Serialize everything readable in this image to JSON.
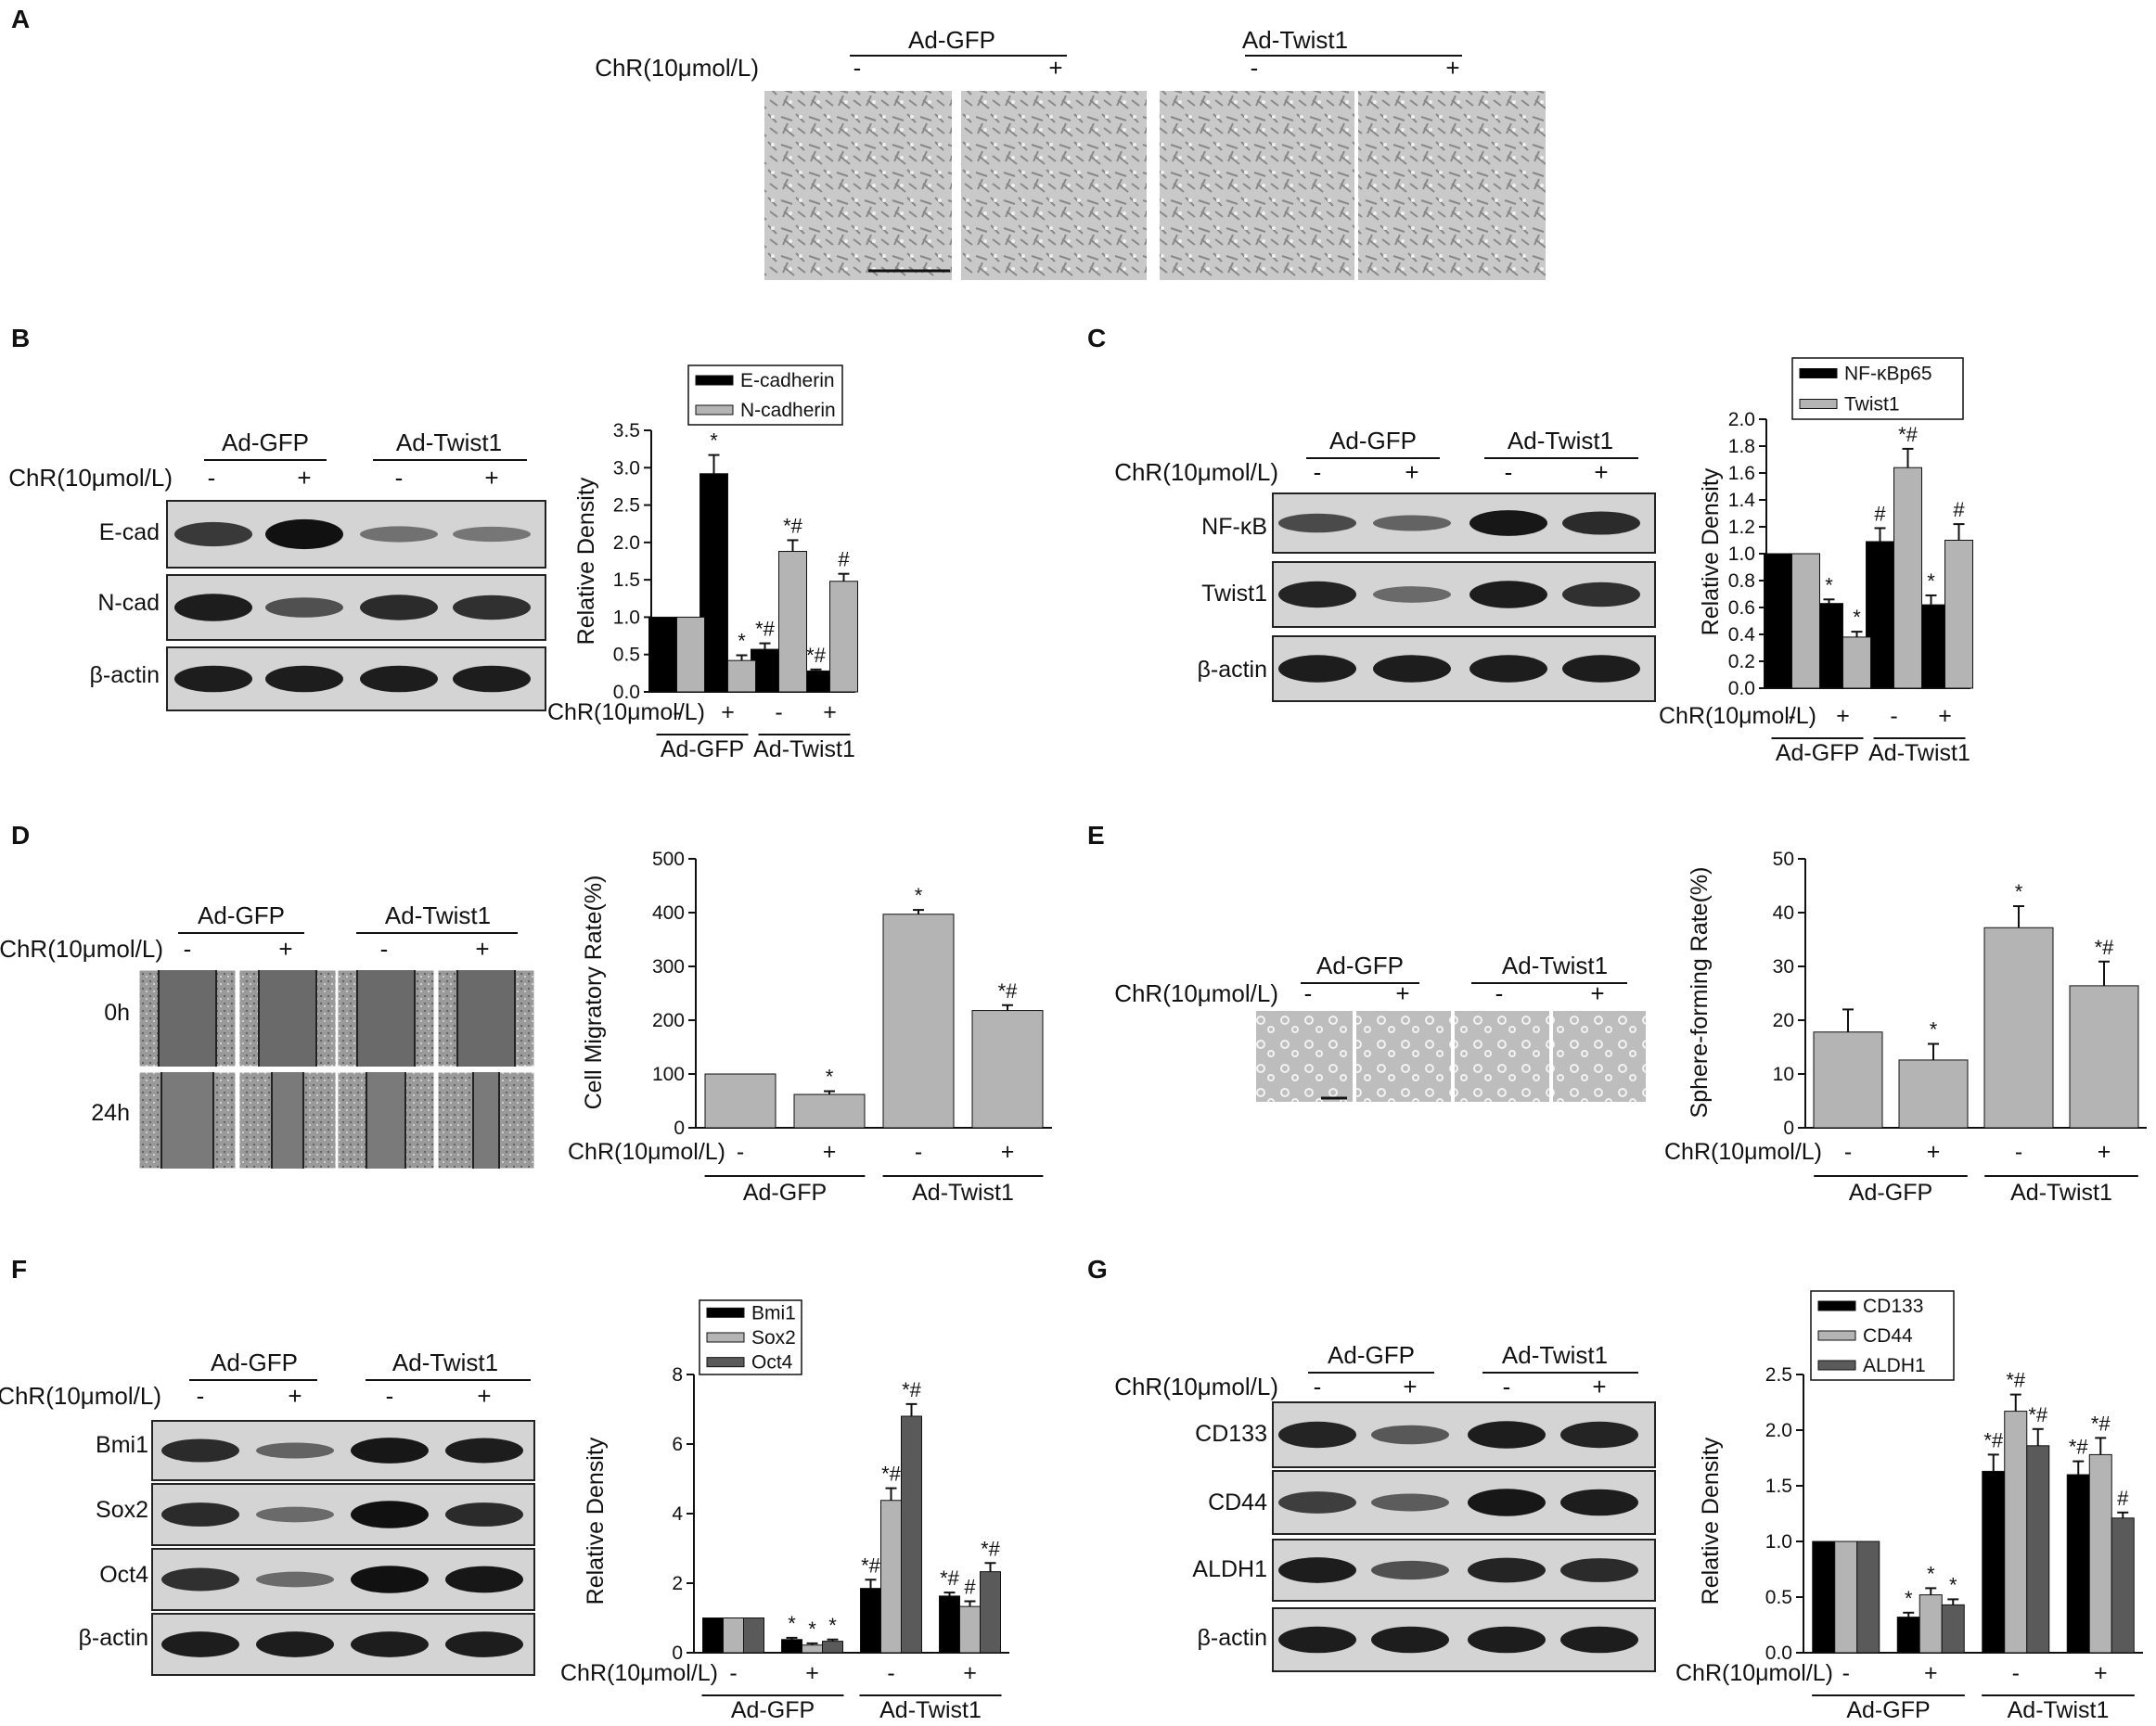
{
  "panels": {
    "A": {
      "label": "A",
      "groups": [
        "Ad-GFP",
        "Ad-Twist1"
      ],
      "treatment_label": "ChR(10μmol/L)",
      "signs": [
        "-",
        "+",
        "-",
        "+"
      ]
    },
    "B": {
      "label": "B",
      "groups": [
        "Ad-GFP",
        "Ad-Twist1"
      ],
      "treatment_label": "ChR(10μmol/L)",
      "signs": [
        "-",
        "+",
        "-",
        "+"
      ],
      "blot_rows": [
        "E-cad",
        "N-cad",
        "β-actin"
      ]
    },
    "C": {
      "label": "C",
      "groups": [
        "Ad-GFP",
        "Ad-Twist1"
      ],
      "treatment_label": "ChR(10μmol/L)",
      "signs": [
        "-",
        "+",
        "-",
        "+"
      ],
      "blot_rows": [
        "NF-κB",
        "Twist1",
        "β-actin"
      ]
    },
    "D": {
      "label": "D",
      "groups": [
        "Ad-GFP",
        "Ad-Twist1"
      ],
      "treatment_label": "ChR(10μmol/L)",
      "signs": [
        "-",
        "+",
        "-",
        "+"
      ],
      "time_rows": [
        "0h",
        "24h"
      ]
    },
    "E": {
      "label": "E",
      "groups": [
        "Ad-GFP",
        "Ad-Twist1"
      ],
      "treatment_label": "ChR(10μmol/L)",
      "signs": [
        "-",
        "+",
        "-",
        "+"
      ]
    },
    "F": {
      "label": "F",
      "groups": [
        "Ad-GFP",
        "Ad-Twist1"
      ],
      "treatment_label": "ChR(10μmol/L)",
      "signs": [
        "-",
        "+",
        "-",
        "+"
      ],
      "blot_rows": [
        "Bmi1",
        "Sox2",
        "Oct4",
        "β-actin"
      ]
    },
    "G": {
      "label": "G",
      "groups": [
        "Ad-GFP",
        "Ad-Twist1"
      ],
      "treatment_label": "ChR(10μmol/L)",
      "signs": [
        "-",
        "+",
        "-",
        "+"
      ],
      "blot_rows": [
        "CD133",
        "CD44",
        "ALDH1",
        "β-actin"
      ]
    }
  },
  "colors": {
    "black": "#000000",
    "light_gray": "#b4b4b4",
    "dark_gray": "#5a5a5a"
  },
  "chart_data": [
    {
      "id": "B",
      "type": "bar",
      "ylabel": "Relative Density",
      "ylim": [
        0,
        3.5
      ],
      "yticks": [
        "0.0",
        "0.5",
        "1.0",
        "1.5",
        "2.0",
        "2.5",
        "3.0",
        "3.5"
      ],
      "legend_position": "top",
      "categories": [
        "-",
        "+",
        "-",
        "+"
      ],
      "group_labels": [
        "Ad-GFP",
        "Ad-Twist1"
      ],
      "treatment_label": "ChR(10μmol/L)",
      "series": [
        {
          "name": "E-cadherin",
          "color": "#000000",
          "values": [
            1.0,
            2.92,
            0.57,
            0.28
          ],
          "errors": [
            0,
            0.25,
            0.08,
            0.02
          ],
          "marks": [
            "",
            "*",
            "*#",
            "*#"
          ]
        },
        {
          "name": "N-cadherin",
          "color": "#b4b4b4",
          "values": [
            1.0,
            0.42,
            1.88,
            1.48
          ],
          "errors": [
            0,
            0.07,
            0.15,
            0.1
          ],
          "marks": [
            "",
            "*",
            "*#",
            "#"
          ]
        }
      ]
    },
    {
      "id": "C",
      "type": "bar",
      "ylabel": "Relative Density",
      "ylim": [
        0,
        2.0
      ],
      "yticks": [
        "0.0",
        "0.2",
        "0.4",
        "0.6",
        "0.8",
        "1.0",
        "1.2",
        "1.4",
        "1.6",
        "1.8",
        "2.0"
      ],
      "legend_position": "top-left",
      "categories": [
        "-",
        "+",
        "-",
        "+"
      ],
      "group_labels": [
        "Ad-GFP",
        "Ad-Twist1"
      ],
      "treatment_label": "ChR(10μmol/L)",
      "series": [
        {
          "name": "NF-κBp65",
          "color": "#000000",
          "values": [
            1.0,
            0.63,
            1.09,
            0.62
          ],
          "errors": [
            0,
            0.03,
            0.1,
            0.07
          ],
          "marks": [
            "",
            "*",
            "#",
            "*"
          ]
        },
        {
          "name": "Twist1",
          "color": "#b4b4b4",
          "values": [
            1.0,
            0.38,
            1.64,
            1.1
          ],
          "errors": [
            0,
            0.04,
            0.14,
            0.12
          ],
          "marks": [
            "",
            "*",
            "*#",
            "#"
          ]
        }
      ]
    },
    {
      "id": "D",
      "type": "bar",
      "ylabel": "Cell Migratory Rate(%)",
      "ylim": [
        0,
        500
      ],
      "yticks": [
        "0",
        "100",
        "200",
        "300",
        "400",
        "500"
      ],
      "categories": [
        "-",
        "+",
        "-",
        "+"
      ],
      "group_labels": [
        "Ad-GFP",
        "Ad-Twist1"
      ],
      "treatment_label": "ChR(10μmol/L)",
      "series": [
        {
          "name": "",
          "color": "#b4b4b4",
          "values": [
            100,
            62,
            397,
            218
          ],
          "errors": [
            0,
            6,
            8,
            10
          ],
          "marks": [
            "",
            "*",
            "*",
            "*#"
          ]
        }
      ]
    },
    {
      "id": "E",
      "type": "bar",
      "ylabel": "Sphere-forming Rate(%)",
      "ylim": [
        0,
        50
      ],
      "yticks": [
        "0",
        "10",
        "20",
        "30",
        "40",
        "50"
      ],
      "categories": [
        "-",
        "+",
        "-",
        "+"
      ],
      "group_labels": [
        "Ad-GFP",
        "Ad-Twist1"
      ],
      "treatment_label": "ChR(10μmol/L)",
      "series": [
        {
          "name": "",
          "color": "#b4b4b4",
          "values": [
            17.8,
            12.6,
            37.2,
            26.4
          ],
          "errors": [
            4.2,
            3.0,
            4.0,
            4.5
          ],
          "marks": [
            "",
            "*",
            "*",
            "*#"
          ]
        }
      ]
    },
    {
      "id": "F",
      "type": "bar",
      "ylabel": "Relative Density",
      "ylim": [
        0,
        8
      ],
      "yticks": [
        "0",
        "2",
        "4",
        "6",
        "8"
      ],
      "legend_position": "top",
      "categories": [
        "-",
        "+",
        "-",
        "+"
      ],
      "group_labels": [
        "Ad-GFP",
        "Ad-Twist1"
      ],
      "treatment_label": "ChR(10μmol/L)",
      "series": [
        {
          "name": "Bmi1",
          "color": "#000000",
          "values": [
            1.0,
            0.38,
            1.85,
            1.63
          ],
          "errors": [
            0,
            0.05,
            0.25,
            0.1
          ],
          "marks": [
            "",
            "*",
            "*#",
            "*#"
          ]
        },
        {
          "name": "Sox2",
          "color": "#b4b4b4",
          "values": [
            1.0,
            0.22,
            4.38,
            1.33
          ],
          "errors": [
            0,
            0.05,
            0.35,
            0.15
          ],
          "marks": [
            "",
            "*",
            "*#",
            "#"
          ]
        },
        {
          "name": "Oct4",
          "color": "#5a5a5a",
          "values": [
            1.0,
            0.33,
            6.8,
            2.33
          ],
          "errors": [
            0,
            0.05,
            0.35,
            0.25
          ],
          "marks": [
            "",
            "*",
            "*#",
            "*#"
          ]
        }
      ]
    },
    {
      "id": "G",
      "type": "bar",
      "ylabel": "Relative Density",
      "ylim": [
        0,
        2.5
      ],
      "yticks": [
        "0.0",
        "0.5",
        "1.0",
        "1.5",
        "2.0",
        "2.5"
      ],
      "legend_position": "top",
      "categories": [
        "-",
        "+",
        "-",
        "+"
      ],
      "group_labels": [
        "Ad-GFP",
        "Ad-Twist1"
      ],
      "treatment_label": "ChR(10μmol/L)",
      "series": [
        {
          "name": "CD133",
          "color": "#000000",
          "values": [
            1.0,
            0.32,
            1.63,
            1.6
          ],
          "errors": [
            0,
            0.04,
            0.15,
            0.12
          ],
          "marks": [
            "",
            "*",
            "*#",
            "*#"
          ]
        },
        {
          "name": "CD44",
          "color": "#b4b4b4",
          "values": [
            1.0,
            0.52,
            2.17,
            1.78
          ],
          "errors": [
            0,
            0.06,
            0.15,
            0.15
          ],
          "marks": [
            "",
            "*",
            "*#",
            "*#"
          ]
        },
        {
          "name": "ALDH1",
          "color": "#5a5a5a",
          "values": [
            1.0,
            0.43,
            1.86,
            1.21
          ],
          "errors": [
            0,
            0.05,
            0.15,
            0.05
          ],
          "marks": [
            "",
            "*",
            "*#",
            "#"
          ]
        }
      ]
    }
  ]
}
